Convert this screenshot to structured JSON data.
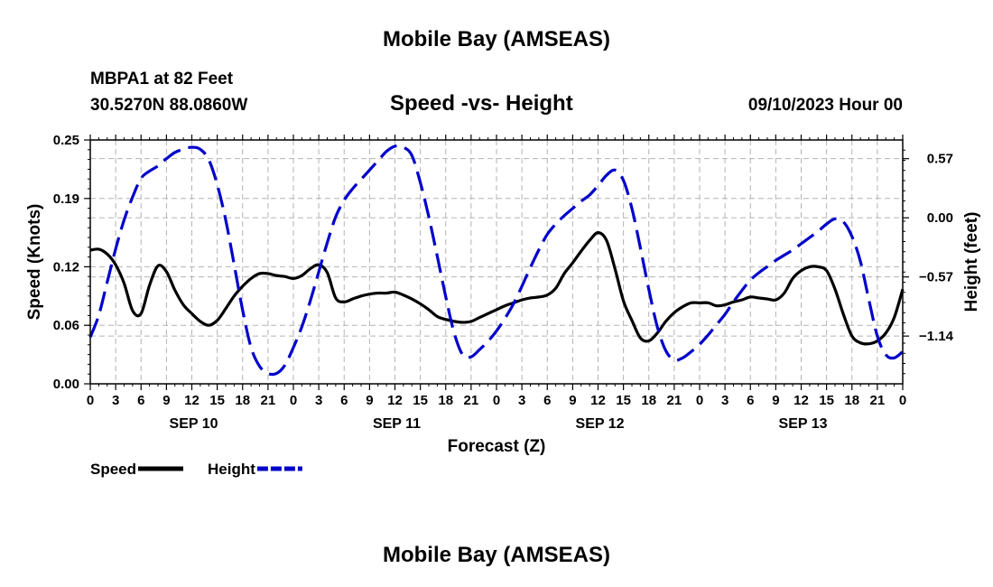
{
  "page": {
    "title": "Mobile Bay (AMSEAS)",
    "bottom_title": "Mobile Bay (AMSEAS)",
    "station_line": "MBPA1 at 82 Feet",
    "coords_line": "30.5270N  88.0860W",
    "run_time": "09/10/2023 Hour 00"
  },
  "chart_data": {
    "type": "line",
    "title": "Speed -vs- Height",
    "xlabel": "Forecast (Z)",
    "ylabel_left": "Speed (Knots)",
    "ylabel_right": "Height (feet)",
    "x_unit": "forecast hour",
    "x_range": [
      0,
      96
    ],
    "x_tick_step": 3,
    "x_tick_labels": [
      "0",
      "3",
      "6",
      "9",
      "12",
      "15",
      "18",
      "21",
      "0",
      "3",
      "6",
      "9",
      "12",
      "15",
      "18",
      "21",
      "0",
      "3",
      "6",
      "9",
      "12",
      "15",
      "18",
      "21",
      "0",
      "3",
      "6",
      "9",
      "12",
      "15",
      "18",
      "21",
      "0"
    ],
    "day_labels": [
      {
        "label": "SEP 10",
        "hour": 12
      },
      {
        "label": "SEP 11",
        "hour": 36
      },
      {
        "label": "SEP 12",
        "hour": 60
      },
      {
        "label": "SEP 13",
        "hour": 84
      }
    ],
    "y_left": {
      "range": [
        0,
        0.25
      ],
      "ticks": [
        0.0,
        0.06,
        0.12,
        0.19,
        0.25
      ],
      "tick_labels": [
        "0.00",
        "0.06",
        "0.12",
        "0.19",
        "0.25"
      ]
    },
    "y_right": {
      "range": [
        -1.6,
        0.75
      ],
      "ticks": [
        0.57,
        0.0,
        -0.57,
        -1.14
      ],
      "tick_labels": [
        "0.57",
        "0.00",
        "−0.57",
        "−1.14"
      ]
    },
    "grid": true,
    "series": [
      {
        "name": "Speed",
        "axis": "left",
        "color": "#000000",
        "style": "solid",
        "x": [
          0,
          1,
          2,
          3,
          4,
          5,
          6,
          7,
          8,
          9,
          10,
          11,
          12,
          13,
          14,
          15,
          16,
          17,
          18,
          19,
          20,
          21,
          22,
          23,
          24,
          25,
          26,
          27,
          28,
          29,
          30,
          31,
          32,
          33,
          34,
          35,
          36,
          37,
          38,
          39,
          40,
          41,
          42,
          43,
          44,
          45,
          46,
          47,
          48,
          49,
          50,
          51,
          52,
          53,
          54,
          55,
          56,
          57,
          58,
          59,
          60,
          61,
          62,
          63,
          64,
          65,
          66,
          67,
          68,
          69,
          70,
          71,
          72,
          73,
          74,
          75,
          76,
          77,
          78,
          79,
          80,
          81,
          82,
          83,
          84,
          85,
          86,
          87,
          88,
          89,
          90,
          91,
          92,
          93,
          94,
          95,
          96
        ],
        "values": [
          0.137,
          0.138,
          0.133,
          0.122,
          0.103,
          0.075,
          0.072,
          0.101,
          0.121,
          0.115,
          0.096,
          0.081,
          0.072,
          0.064,
          0.06,
          0.065,
          0.077,
          0.09,
          0.1,
          0.108,
          0.113,
          0.113,
          0.111,
          0.11,
          0.108,
          0.111,
          0.118,
          0.122,
          0.114,
          0.088,
          0.084,
          0.087,
          0.09,
          0.092,
          0.093,
          0.093,
          0.094,
          0.091,
          0.087,
          0.082,
          0.076,
          0.069,
          0.066,
          0.064,
          0.063,
          0.064,
          0.068,
          0.072,
          0.076,
          0.08,
          0.083,
          0.086,
          0.088,
          0.089,
          0.091,
          0.098,
          0.113,
          0.124,
          0.136,
          0.147,
          0.155,
          0.147,
          0.118,
          0.085,
          0.065,
          0.047,
          0.044,
          0.052,
          0.064,
          0.073,
          0.079,
          0.083,
          0.083,
          0.083,
          0.08,
          0.081,
          0.084,
          0.086,
          0.089,
          0.088,
          0.087,
          0.086,
          0.093,
          0.108,
          0.116,
          0.12,
          0.12,
          0.116,
          0.097,
          0.071,
          0.049,
          0.042,
          0.041,
          0.044,
          0.052,
          0.068,
          0.097
        ]
      },
      {
        "name": "Height",
        "axis": "right",
        "color": "#0000cc",
        "style": "dashed",
        "x": [
          0,
          1,
          2,
          3,
          4,
          5,
          6,
          7,
          8,
          9,
          10,
          11,
          12,
          13,
          14,
          15,
          16,
          17,
          18,
          19,
          20,
          21,
          22,
          23,
          24,
          25,
          26,
          27,
          28,
          29,
          30,
          31,
          32,
          33,
          34,
          35,
          36,
          37,
          38,
          39,
          40,
          41,
          42,
          43,
          44,
          45,
          46,
          47,
          48,
          49,
          50,
          51,
          52,
          53,
          54,
          55,
          56,
          57,
          58,
          59,
          60,
          61,
          62,
          63,
          64,
          65,
          66,
          67,
          68,
          69,
          70,
          71,
          72,
          73,
          74,
          75,
          76,
          77,
          78,
          79,
          80,
          81,
          82,
          83,
          84,
          85,
          86,
          87,
          88,
          89,
          90,
          91,
          92,
          93,
          94,
          95,
          96
        ],
        "values": [
          -1.15,
          -0.94,
          -0.62,
          -0.3,
          -0.02,
          0.2,
          0.38,
          0.45,
          0.5,
          0.57,
          0.63,
          0.66,
          0.68,
          0.66,
          0.56,
          0.32,
          -0.02,
          -0.45,
          -0.89,
          -1.25,
          -1.43,
          -1.5,
          -1.5,
          -1.42,
          -1.25,
          -1.05,
          -0.8,
          -0.52,
          -0.24,
          0.01,
          0.17,
          0.28,
          0.37,
          0.46,
          0.55,
          0.64,
          0.69,
          0.68,
          0.6,
          0.34,
          0.01,
          -0.37,
          -0.76,
          -1.11,
          -1.32,
          -1.34,
          -1.27,
          -1.19,
          -1.09,
          -0.97,
          -0.83,
          -0.66,
          -0.48,
          -0.31,
          -0.16,
          -0.06,
          0.02,
          0.09,
          0.16,
          0.22,
          0.31,
          0.41,
          0.46,
          0.36,
          0.09,
          -0.29,
          -0.69,
          -1.05,
          -1.28,
          -1.37,
          -1.35,
          -1.29,
          -1.22,
          -1.13,
          -1.03,
          -0.93,
          -0.81,
          -0.7,
          -0.6,
          -0.53,
          -0.47,
          -0.41,
          -0.36,
          -0.31,
          -0.25,
          -0.19,
          -0.13,
          -0.06,
          -0.01,
          -0.04,
          -0.18,
          -0.42,
          -0.79,
          -1.14,
          -1.32,
          -1.35,
          -1.29
        ]
      }
    ],
    "legend": [
      {
        "label": "Speed",
        "color": "#000000",
        "style": "solid"
      },
      {
        "label": "Height",
        "color": "#0000cc",
        "style": "dashed"
      }
    ]
  }
}
